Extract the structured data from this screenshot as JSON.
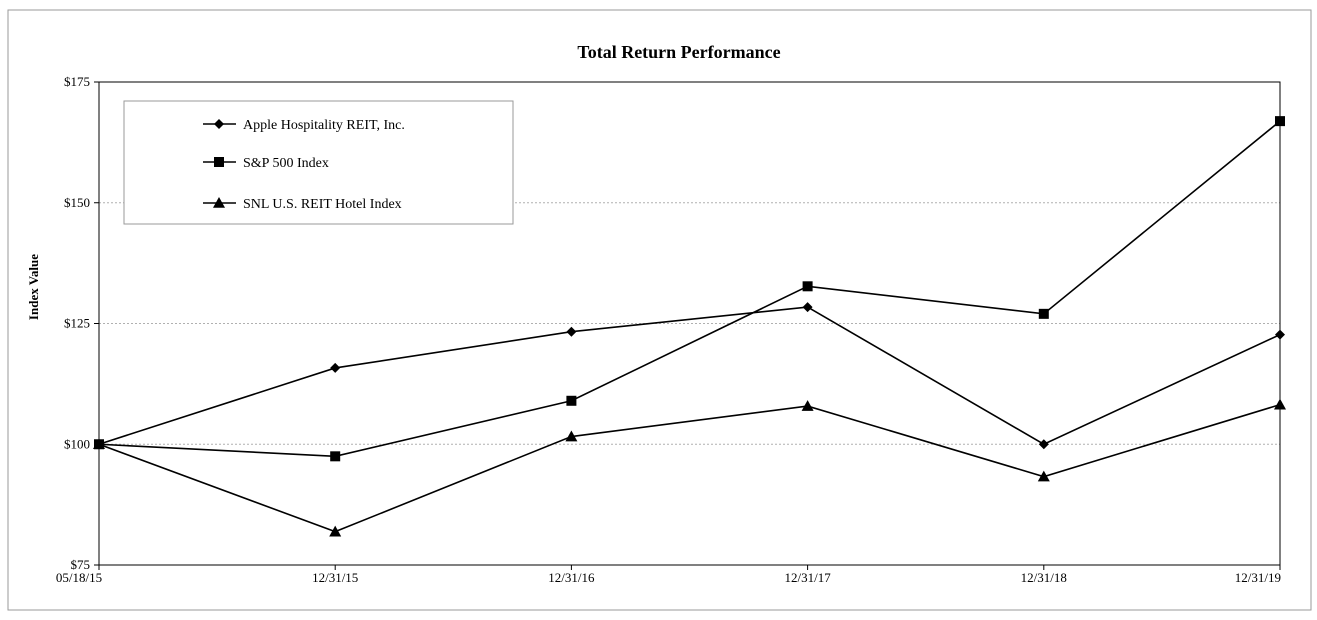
{
  "chart_data": {
    "type": "line",
    "title": "Total Return Performance",
    "xlabel": "",
    "ylabel": "Index Value",
    "categories": [
      "05/18/15",
      "12/31/15",
      "12/31/16",
      "12/31/17",
      "12/31/18",
      "12/31/19"
    ],
    "ylim": [
      75,
      175
    ],
    "yticks": [
      75,
      100,
      125,
      150,
      175
    ],
    "ytick_labels": [
      "$75",
      "$100",
      "$125",
      "$150",
      "$175"
    ],
    "grid": "horizontal dotted",
    "legend_position": "top-left",
    "series": [
      {
        "name": "Apple Hospitality REIT, Inc.",
        "marker": "diamond",
        "color": "#000000",
        "values": [
          100,
          115.8,
          123.3,
          128.4,
          100,
          122.7
        ]
      },
      {
        "name": "S&P 500 Index",
        "marker": "square",
        "color": "#000000",
        "values": [
          100,
          97.5,
          109,
          132.7,
          127,
          166.9
        ]
      },
      {
        "name": "SNL U.S. REIT Hotel Index",
        "marker": "triangle",
        "color": "#000000",
        "values": [
          100,
          81.9,
          101.6,
          107.9,
          93.3,
          108.2
        ]
      }
    ]
  }
}
